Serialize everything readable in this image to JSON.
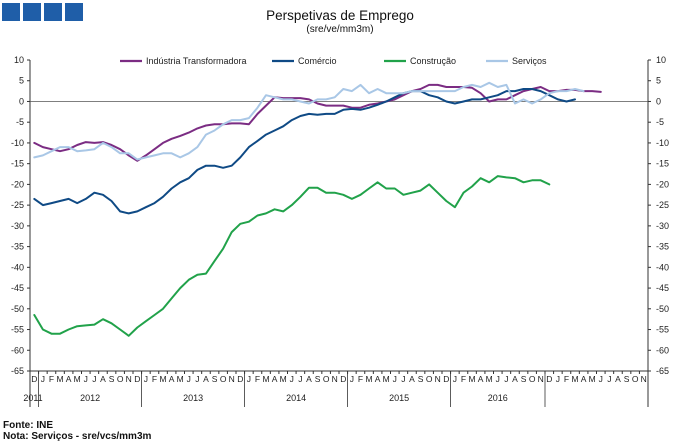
{
  "logo_icon": "ine-blue-squares-icon",
  "colors": {
    "industria": "#7b2c83",
    "comercio": "#0f4a85",
    "construcao": "#21a24a",
    "servicos": "#a9c7e6",
    "axis": "#333333",
    "grid_zero": "#555555"
  },
  "chart_data": {
    "type": "line",
    "title": "Perspetivas de Emprego",
    "subtitle": "(sre/ve/mm3m)",
    "ylim": [
      -65,
      10
    ],
    "yticks": [
      10,
      5,
      0,
      -5,
      -10,
      -15,
      -20,
      -25,
      -30,
      -35,
      -40,
      -45,
      -50,
      -55,
      -60,
      -65
    ],
    "month_labels": [
      "D",
      "J",
      "F",
      "M",
      "A",
      "M",
      "J",
      "J",
      "A",
      "S",
      "O",
      "N",
      "D",
      "J",
      "F",
      "M",
      "A",
      "M",
      "J",
      "J",
      "A",
      "S",
      "O",
      "N",
      "D",
      "J",
      "F",
      "M",
      "A",
      "M",
      "J",
      "J",
      "A",
      "S",
      "O",
      "N",
      "D",
      "J",
      "F",
      "M",
      "A",
      "M",
      "J",
      "J",
      "A",
      "S",
      "O",
      "N",
      "D",
      "J",
      "F",
      "M",
      "A",
      "M",
      "J",
      "J",
      "A",
      "S",
      "O",
      "N",
      "D",
      "J",
      "F",
      "M",
      "A",
      "M",
      "J",
      "J",
      "A",
      "S",
      "O",
      "N"
    ],
    "year_labels": [
      {
        "label": "2011",
        "start": 0,
        "end": 0
      },
      {
        "label": "2012",
        "start": 1,
        "end": 12
      },
      {
        "label": "2013",
        "start": 13,
        "end": 24
      },
      {
        "label": "2014",
        "start": 25,
        "end": 36
      },
      {
        "label": "2015",
        "start": 37,
        "end": 48
      },
      {
        "label": "2016",
        "start": 49,
        "end": 59
      }
    ],
    "series": [
      {
        "name": "Indústria Transformadora",
        "color_key": "industria",
        "values": [
          -10,
          -11,
          -11.5,
          -12,
          -11.5,
          -10.5,
          -9.8,
          -10,
          -9.8,
          -10.5,
          -11.5,
          -13,
          -14.3,
          -13,
          -11.5,
          -10,
          -9,
          -8.3,
          -7.5,
          -6.5,
          -5.8,
          -5.5,
          -5.5,
          -5.3,
          -5.3,
          -5.5,
          -3,
          -1,
          1,
          0.8,
          0.8,
          0.8,
          0.5,
          -0.5,
          -1,
          -1,
          -1,
          -1.5,
          -1.5,
          -0.8,
          -0.5,
          0,
          0.5,
          1.5,
          2.5,
          3,
          4,
          4,
          3.5,
          3.5,
          3.5,
          3.3,
          2,
          0,
          0.5,
          0.5,
          1.5,
          2.5,
          3,
          3.5,
          2.5,
          2.5,
          2.8,
          2.8,
          2.5,
          2.5,
          2.3
        ]
      },
      {
        "name": "Comércio",
        "color_key": "comercio",
        "values": [
          -23.5,
          -25,
          -24.5,
          -24,
          -23.5,
          -24.5,
          -23.5,
          -22,
          -22.5,
          -24,
          -26.5,
          -27,
          -26.5,
          -25.5,
          -24.5,
          -23,
          -21,
          -19.5,
          -18.5,
          -16.5,
          -15.5,
          -15.5,
          -16,
          -15.5,
          -13.5,
          -11,
          -9.5,
          -8,
          -7,
          -6,
          -4.5,
          -3.5,
          -3,
          -3.2,
          -3,
          -3,
          -2,
          -1.8,
          -2,
          -1.5,
          -0.8,
          0,
          1,
          2,
          2.5,
          2.5,
          1.5,
          1,
          0,
          -0.5,
          0,
          0.5,
          0.5,
          1,
          1.5,
          2.5,
          2.5,
          3,
          3,
          2.5,
          1.5,
          0.5,
          0,
          0.5
        ]
      },
      {
        "name": "Construção",
        "color_key": "construcao",
        "values": [
          -51.5,
          -55,
          -56,
          -56,
          -55,
          -54.2,
          -54,
          -53.8,
          -52.5,
          -53.5,
          -55,
          -56.5,
          -54.5,
          -53,
          -51.5,
          -50,
          -47.5,
          -45,
          -43,
          -41.8,
          -41.5,
          -38.5,
          -35.5,
          -31.5,
          -29.5,
          -29,
          -27.5,
          -27,
          -26,
          -26.5,
          -25,
          -23,
          -20.8,
          -20.8,
          -22,
          -22,
          -22.5,
          -23.5,
          -22.5,
          -21,
          -19.5,
          -21,
          -21,
          -22.5,
          -22,
          -21.5,
          -20,
          -22,
          -24,
          -25.5,
          -22,
          -20.5,
          -18.5,
          -19.5,
          -18,
          -18.3,
          -18.5,
          -19.5,
          -19,
          -19,
          -20
        ]
      },
      {
        "name": "Serviços",
        "color_key": "servicos",
        "values": [
          -13.5,
          -13,
          -12,
          -11,
          -11,
          -12,
          -11.8,
          -11.5,
          -10,
          -11,
          -12.5,
          -12.5,
          -14,
          -13.5,
          -13,
          -12.5,
          -12.5,
          -13.5,
          -12.5,
          -11,
          -8,
          -7,
          -5.5,
          -4.5,
          -4.5,
          -4,
          -1.5,
          1.5,
          1,
          0.5,
          0.5,
          0,
          -0.5,
          0.5,
          0.5,
          1,
          3,
          2.5,
          4,
          2,
          3,
          2,
          2,
          2,
          2.5,
          2.5,
          2.5,
          2.5,
          2.5,
          2.5,
          3.5,
          4,
          3.5,
          4.5,
          3.5,
          4,
          -0.5,
          0.5,
          -0.5,
          0.5,
          2,
          2.5,
          2.5,
          3,
          2.5
        ]
      }
    ]
  },
  "footer": {
    "source": "Fonte: INE",
    "note": "Nota: Serviços - sre/vcs/mm3m"
  }
}
